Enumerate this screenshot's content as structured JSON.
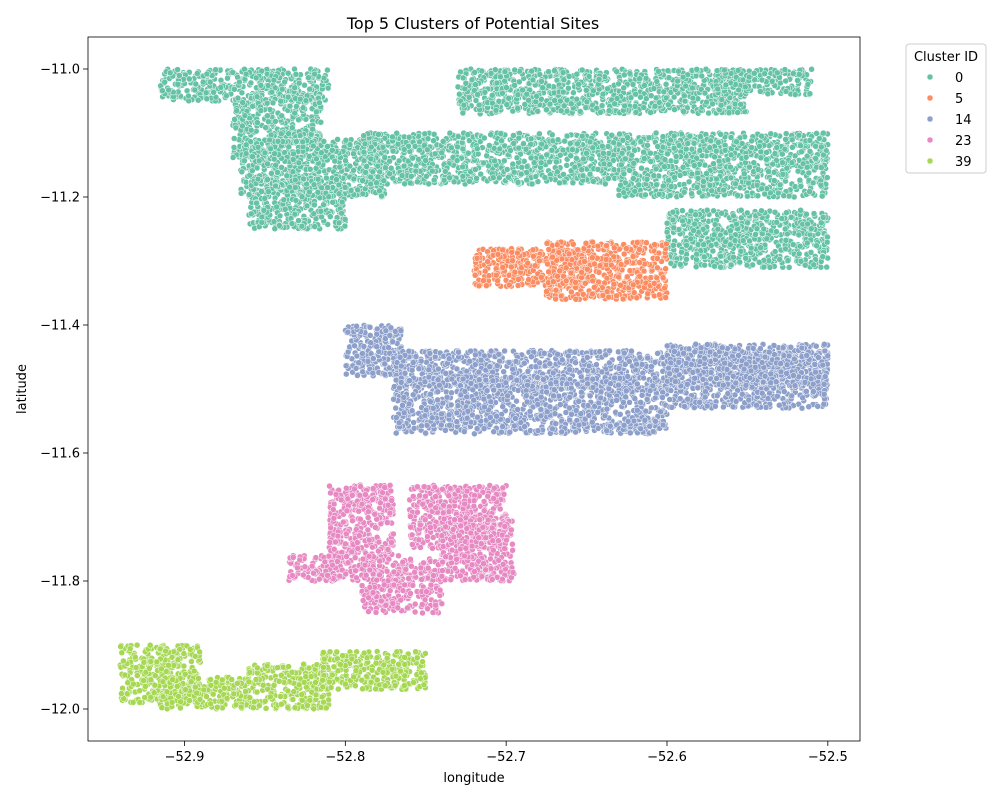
{
  "chart_data": {
    "type": "scatter",
    "title": "Top 5 Clusters of Potential Sites",
    "xlabel": "longitude",
    "ylabel": "latitude",
    "xlim": [
      -52.96,
      -52.48
    ],
    "ylim": [
      -12.05,
      -10.95
    ],
    "xticks": [
      -52.9,
      -52.8,
      -52.7,
      -52.6,
      -52.5
    ],
    "xtick_labels": [
      "−52.9",
      "−52.8",
      "−52.7",
      "−52.6",
      "−52.5"
    ],
    "yticks": [
      -11.0,
      -11.2,
      -11.4,
      -11.6,
      -11.8,
      -12.0
    ],
    "ytick_labels": [
      "−11.0",
      "−11.2",
      "−11.4",
      "−11.6",
      "−11.8",
      "−12.0"
    ],
    "grid": false,
    "legend": {
      "title": "Cluster ID",
      "placement": "outside-top-right"
    },
    "series": [
      {
        "name": "0",
        "color": "#66c2a5",
        "regions": [
          {
            "lon": [
              -52.915,
              -52.81
            ],
            "lat": [
              -11.05,
              -11.0
            ]
          },
          {
            "lon": [
              -52.87,
              -52.815
            ],
            "lat": [
              -11.14,
              -11.04
            ]
          },
          {
            "lon": [
              -52.865,
              -52.775
            ],
            "lat": [
              -11.2,
              -11.11
            ]
          },
          {
            "lon": [
              -52.86,
              -52.8
            ],
            "lat": [
              -11.25,
              -11.17
            ]
          },
          {
            "lon": [
              -52.79,
              -52.63
            ],
            "lat": [
              -11.18,
              -11.1
            ]
          },
          {
            "lon": [
              -52.73,
              -52.55
            ],
            "lat": [
              -11.07,
              -11.0
            ]
          },
          {
            "lon": [
              -52.63,
              -52.5
            ],
            "lat": [
              -11.2,
              -11.1
            ]
          },
          {
            "lon": [
              -52.6,
              -52.5
            ],
            "lat": [
              -11.31,
              -11.22
            ]
          },
          {
            "lon": [
              -52.57,
              -52.51
            ],
            "lat": [
              -11.04,
              -11.0
            ]
          }
        ]
      },
      {
        "name": "5",
        "color": "#fc8d62",
        "regions": [
          {
            "lon": [
              -52.72,
              -52.65
            ],
            "lat": [
              -11.34,
              -11.28
            ]
          },
          {
            "lon": [
              -52.675,
              -52.6
            ],
            "lat": [
              -11.36,
              -11.27
            ]
          }
        ]
      },
      {
        "name": "14",
        "color": "#8da0cb",
        "regions": [
          {
            "lon": [
              -52.8,
              -52.765
            ],
            "lat": [
              -11.48,
              -11.4
            ]
          },
          {
            "lon": [
              -52.77,
              -52.5
            ],
            "lat": [
              -11.5,
              -11.44
            ]
          },
          {
            "lon": [
              -52.77,
              -52.6
            ],
            "lat": [
              -11.57,
              -11.48
            ]
          },
          {
            "lon": [
              -52.6,
              -52.5
            ],
            "lat": [
              -11.53,
              -11.43
            ]
          }
        ]
      },
      {
        "name": "23",
        "color": "#e78ac3",
        "regions": [
          {
            "lon": [
              -52.81,
              -52.77
            ],
            "lat": [
              -11.76,
              -11.65
            ]
          },
          {
            "lon": [
              -52.835,
              -52.79
            ],
            "lat": [
              -11.8,
              -11.76
            ]
          },
          {
            "lon": [
              -52.79,
              -52.74
            ],
            "lat": [
              -11.85,
              -11.76
            ]
          },
          {
            "lon": [
              -52.76,
              -52.7
            ],
            "lat": [
              -11.75,
              -11.65
            ]
          },
          {
            "lon": [
              -52.74,
              -52.695
            ],
            "lat": [
              -11.8,
              -11.7
            ]
          }
        ]
      },
      {
        "name": "39",
        "color": "#a6d854",
        "regions": [
          {
            "lon": [
              -52.94,
              -52.89
            ],
            "lat": [
              -11.99,
              -11.9
            ]
          },
          {
            "lon": [
              -52.915,
              -52.86
            ],
            "lat": [
              -12.0,
              -11.95
            ]
          },
          {
            "lon": [
              -52.86,
              -52.81
            ],
            "lat": [
              -12.0,
              -11.93
            ]
          },
          {
            "lon": [
              -52.815,
              -52.75
            ],
            "lat": [
              -11.97,
              -11.91
            ]
          }
        ]
      }
    ]
  }
}
